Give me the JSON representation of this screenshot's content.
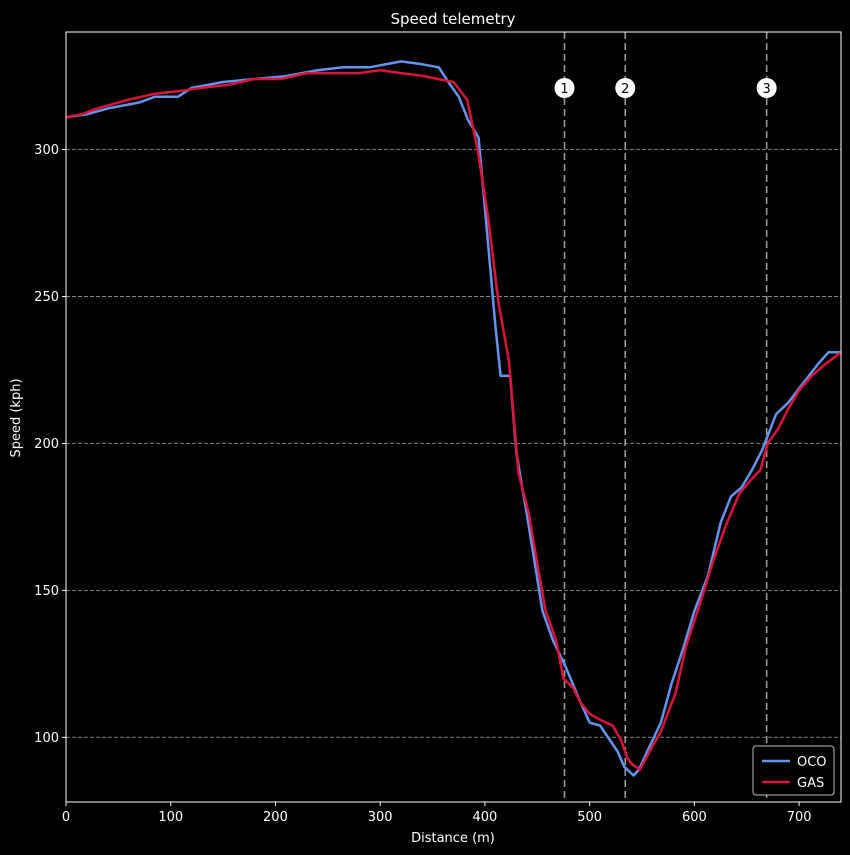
{
  "chart_data": {
    "type": "line",
    "title": "Speed telemetry",
    "xlabel": "Distance (m)",
    "ylabel": "Speed (kph)",
    "xlim": [
      0,
      740
    ],
    "ylim": [
      78,
      340
    ],
    "xticks": [
      0,
      100,
      200,
      300,
      400,
      500,
      600,
      700
    ],
    "yticks": [
      100,
      150,
      200,
      250,
      300
    ],
    "grid": "horizontal dashed",
    "legend_position": "lower-right",
    "markers": [
      {
        "label": "1",
        "x": 476
      },
      {
        "label": "2",
        "x": 534
      },
      {
        "label": "3",
        "x": 669
      }
    ],
    "series": [
      {
        "name": "OCO",
        "color": "#6495ED",
        "points": [
          [
            0,
            311
          ],
          [
            20,
            312
          ],
          [
            40,
            314
          ],
          [
            70,
            316
          ],
          [
            85,
            318
          ],
          [
            107,
            318
          ],
          [
            120,
            321
          ],
          [
            150,
            323
          ],
          [
            180,
            324
          ],
          [
            210,
            325
          ],
          [
            240,
            327
          ],
          [
            265,
            328
          ],
          [
            290,
            328
          ],
          [
            320,
            330
          ],
          [
            340,
            329
          ],
          [
            356,
            328
          ],
          [
            365,
            323
          ],
          [
            375,
            318
          ],
          [
            384,
            310
          ],
          [
            394,
            304
          ],
          [
            400,
            280
          ],
          [
            410,
            240
          ],
          [
            415,
            223
          ],
          [
            424,
            223
          ],
          [
            430,
            197
          ],
          [
            440,
            176
          ],
          [
            455,
            143
          ],
          [
            465,
            133
          ],
          [
            477,
            124
          ],
          [
            490,
            113
          ],
          [
            500,
            105
          ],
          [
            510,
            104
          ],
          [
            527,
            95
          ],
          [
            533,
            90
          ],
          [
            542,
            87
          ],
          [
            547,
            89
          ],
          [
            556,
            96
          ],
          [
            568,
            105
          ],
          [
            578,
            118
          ],
          [
            590,
            131
          ],
          [
            600,
            143
          ],
          [
            613,
            155
          ],
          [
            625,
            173
          ],
          [
            635,
            182
          ],
          [
            645,
            185
          ],
          [
            655,
            191
          ],
          [
            665,
            198
          ],
          [
            678,
            210
          ],
          [
            690,
            214
          ],
          [
            705,
            221
          ],
          [
            718,
            227
          ],
          [
            728,
            231
          ],
          [
            740,
            231
          ]
        ]
      },
      {
        "name": "GAS",
        "color": "#DC143C",
        "points": [
          [
            0,
            311
          ],
          [
            15,
            312
          ],
          [
            30,
            314
          ],
          [
            60,
            317
          ],
          [
            85,
            319
          ],
          [
            110,
            320
          ],
          [
            130,
            321
          ],
          [
            155,
            322
          ],
          [
            180,
            324
          ],
          [
            205,
            324
          ],
          [
            230,
            326
          ],
          [
            255,
            326
          ],
          [
            280,
            326
          ],
          [
            300,
            327
          ],
          [
            320,
            326
          ],
          [
            342,
            325
          ],
          [
            355,
            324
          ],
          [
            370,
            323
          ],
          [
            383,
            317
          ],
          [
            393,
            300
          ],
          [
            403,
            277
          ],
          [
            413,
            248
          ],
          [
            423,
            228
          ],
          [
            432,
            190
          ],
          [
            442,
            176
          ],
          [
            452,
            155
          ],
          [
            458,
            143
          ],
          [
            468,
            133
          ],
          [
            475,
            120
          ],
          [
            484,
            117
          ],
          [
            491,
            112
          ],
          [
            500,
            108
          ],
          [
            510,
            106
          ],
          [
            522,
            104
          ],
          [
            530,
            99
          ],
          [
            536,
            93
          ],
          [
            540,
            91
          ],
          [
            548,
            89
          ],
          [
            557,
            95
          ],
          [
            568,
            102
          ],
          [
            582,
            115
          ],
          [
            592,
            131
          ],
          [
            605,
            145
          ],
          [
            618,
            160
          ],
          [
            630,
            172
          ],
          [
            643,
            183
          ],
          [
            655,
            188
          ],
          [
            663,
            191
          ],
          [
            670,
            200
          ],
          [
            680,
            205
          ],
          [
            690,
            212
          ],
          [
            700,
            218
          ],
          [
            712,
            223
          ],
          [
            725,
            227
          ],
          [
            740,
            231
          ]
        ]
      }
    ]
  }
}
